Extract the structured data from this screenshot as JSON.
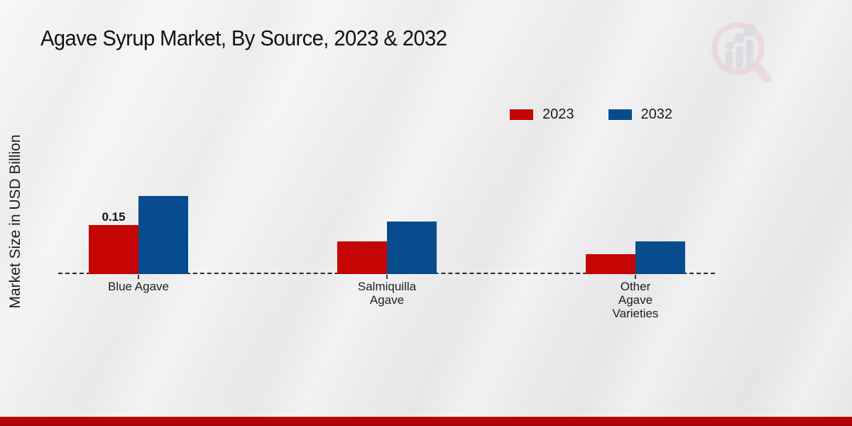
{
  "title": "Agave Syrup Market, By Source, 2023 & 2032",
  "ylabel": "Market Size in USD Billion",
  "legend": [
    {
      "label": "2023",
      "color": "#c50404"
    },
    {
      "label": "2032",
      "color": "#074c8c"
    }
  ],
  "chart_data": {
    "type": "bar",
    "title": "Agave Syrup Market, By Source, 2023 & 2032",
    "ylabel": "Market Size in USD Billion",
    "units": "USD Billion",
    "categories": [
      "Blue Agave",
      "Salmiquilla Agave",
      "Other Agave Varieties"
    ],
    "categories_display": [
      "Blue Agave",
      "Salmiquilla\nAgave",
      "Other\nAgave\nVarieties"
    ],
    "series": [
      {
        "name": "2023",
        "color": "#c50404",
        "values": [
          0.15,
          0.1,
          0.06
        ]
      },
      {
        "name": "2032",
        "color": "#074c8c",
        "values": [
          0.24,
          0.16,
          0.1
        ]
      }
    ],
    "annotations": [
      {
        "series": "2023",
        "category": "Blue Agave",
        "text": "0.15"
      }
    ],
    "ylim": [
      0,
      0.3
    ],
    "grid": false,
    "baseline_style": "dashed",
    "legend_position": "top-right"
  },
  "watermark": {
    "icon": "magnifier-bar-chart-logo",
    "ring_color": "#eccccd",
    "bar_color": "#d3d3d8"
  },
  "footer": {
    "band_color": "#b30505"
  }
}
